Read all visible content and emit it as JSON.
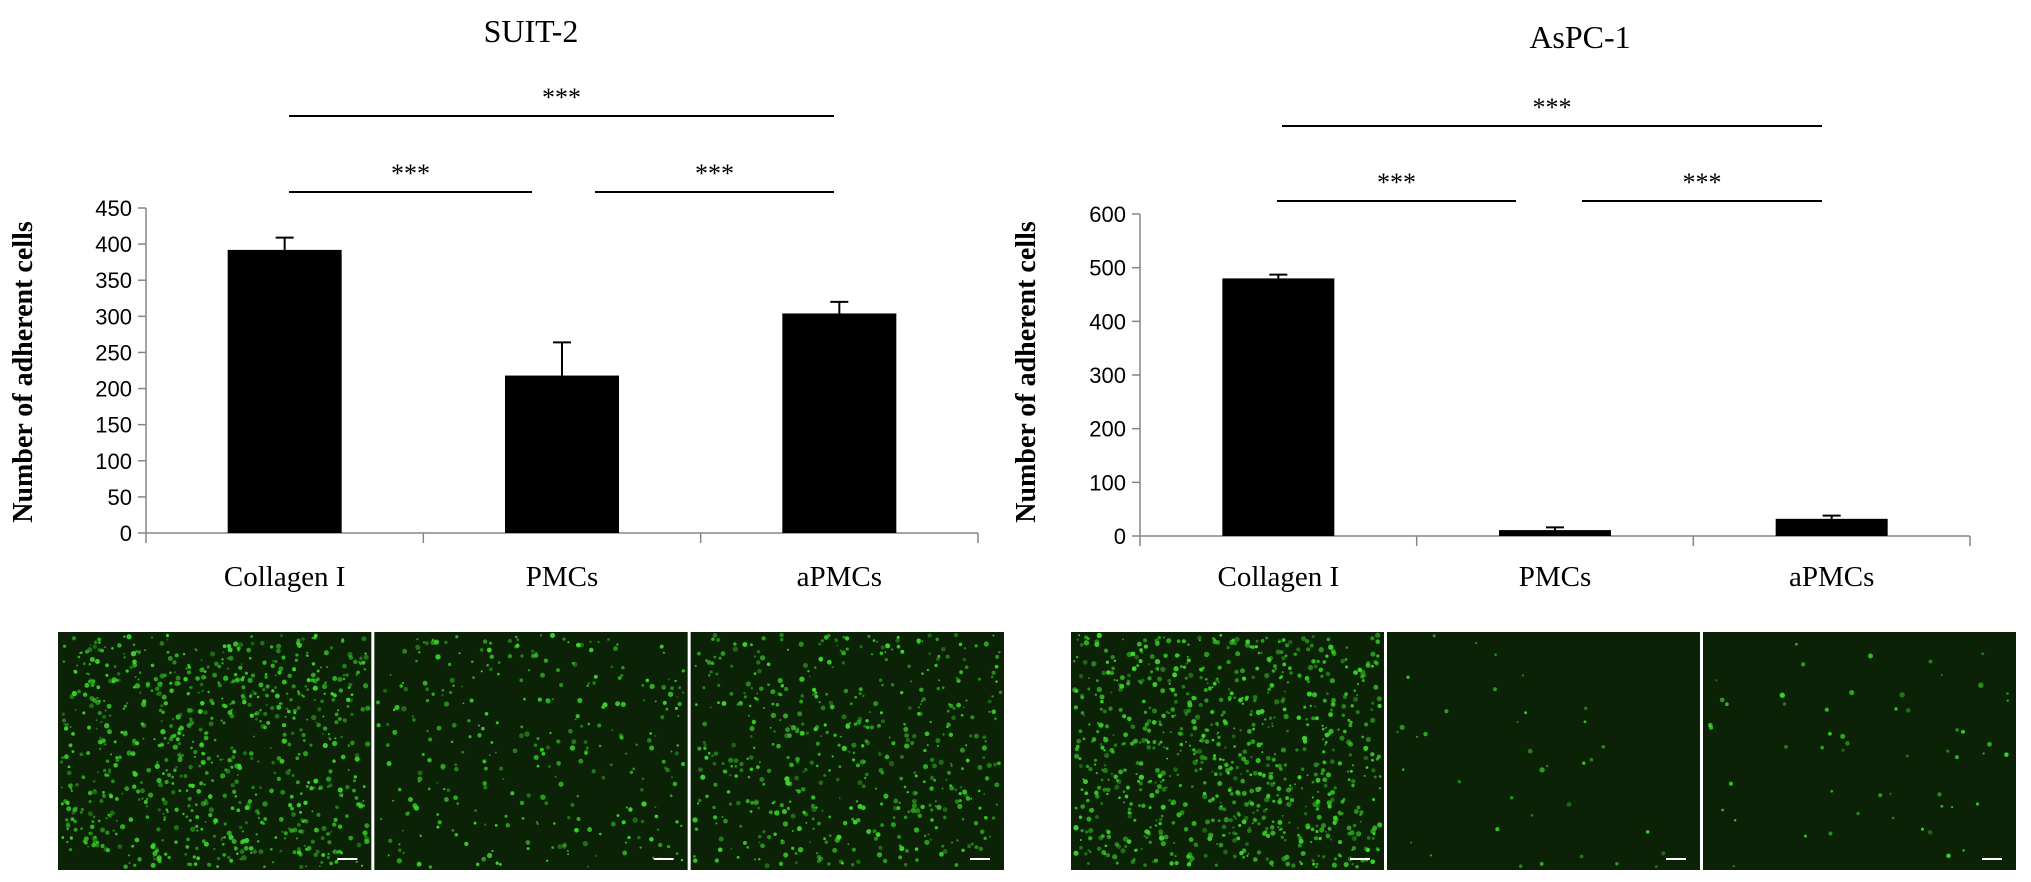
{
  "chart_data": [
    {
      "type": "bar",
      "title": "SUIT-2",
      "xlabel": "",
      "ylabel": "Number of adherent cells",
      "categories": [
        "Collagen I",
        "PMCs",
        "aPMCs"
      ],
      "values": [
        392,
        218,
        304
      ],
      "errors": [
        17,
        46,
        16
      ],
      "ylim": [
        0,
        450
      ],
      "yticks": [
        0,
        50,
        100,
        150,
        200,
        250,
        300,
        350,
        400,
        450
      ],
      "bar_color": "#000000",
      "grid": false,
      "significance": [
        {
          "from": 0,
          "to": 1,
          "label": "***"
        },
        {
          "from": 1,
          "to": 2,
          "label": "***"
        },
        {
          "from": 0,
          "to": 2,
          "label": "***"
        }
      ]
    },
    {
      "type": "bar",
      "title": "AsPC-1",
      "xlabel": "",
      "ylabel": "Number of adherent cells",
      "categories": [
        "Collagen I",
        "PMCs",
        "aPMCs"
      ],
      "values": [
        480,
        11,
        32
      ],
      "errors": [
        7,
        5,
        6
      ],
      "ylim": [
        0,
        600
      ],
      "yticks": [
        0,
        100,
        200,
        300,
        400,
        500,
        600
      ],
      "bar_color": "#000000",
      "grid": false,
      "significance": [
        {
          "from": 0,
          "to": 1,
          "label": "***"
        },
        {
          "from": 1,
          "to": 2,
          "label": "***"
        },
        {
          "from": 0,
          "to": 2,
          "label": "***"
        }
      ]
    }
  ],
  "micrographs": [
    {
      "panel": "SUIT-2",
      "images": [
        {
          "category": "Collagen I",
          "density": 0.95
        },
        {
          "category": "PMCs",
          "density": 0.35
        },
        {
          "category": "aPMCs",
          "density": 0.6
        }
      ]
    },
    {
      "panel": "AsPC-1",
      "images": [
        {
          "category": "Collagen I",
          "density": 1.0
        },
        {
          "category": "PMCs",
          "density": 0.04
        },
        {
          "category": "aPMCs",
          "density": 0.06
        }
      ]
    }
  ],
  "colors": {
    "micrograph_bg": "#0c2206",
    "cell_green": "#3ad62a",
    "scale_bar": "#ffffff"
  }
}
